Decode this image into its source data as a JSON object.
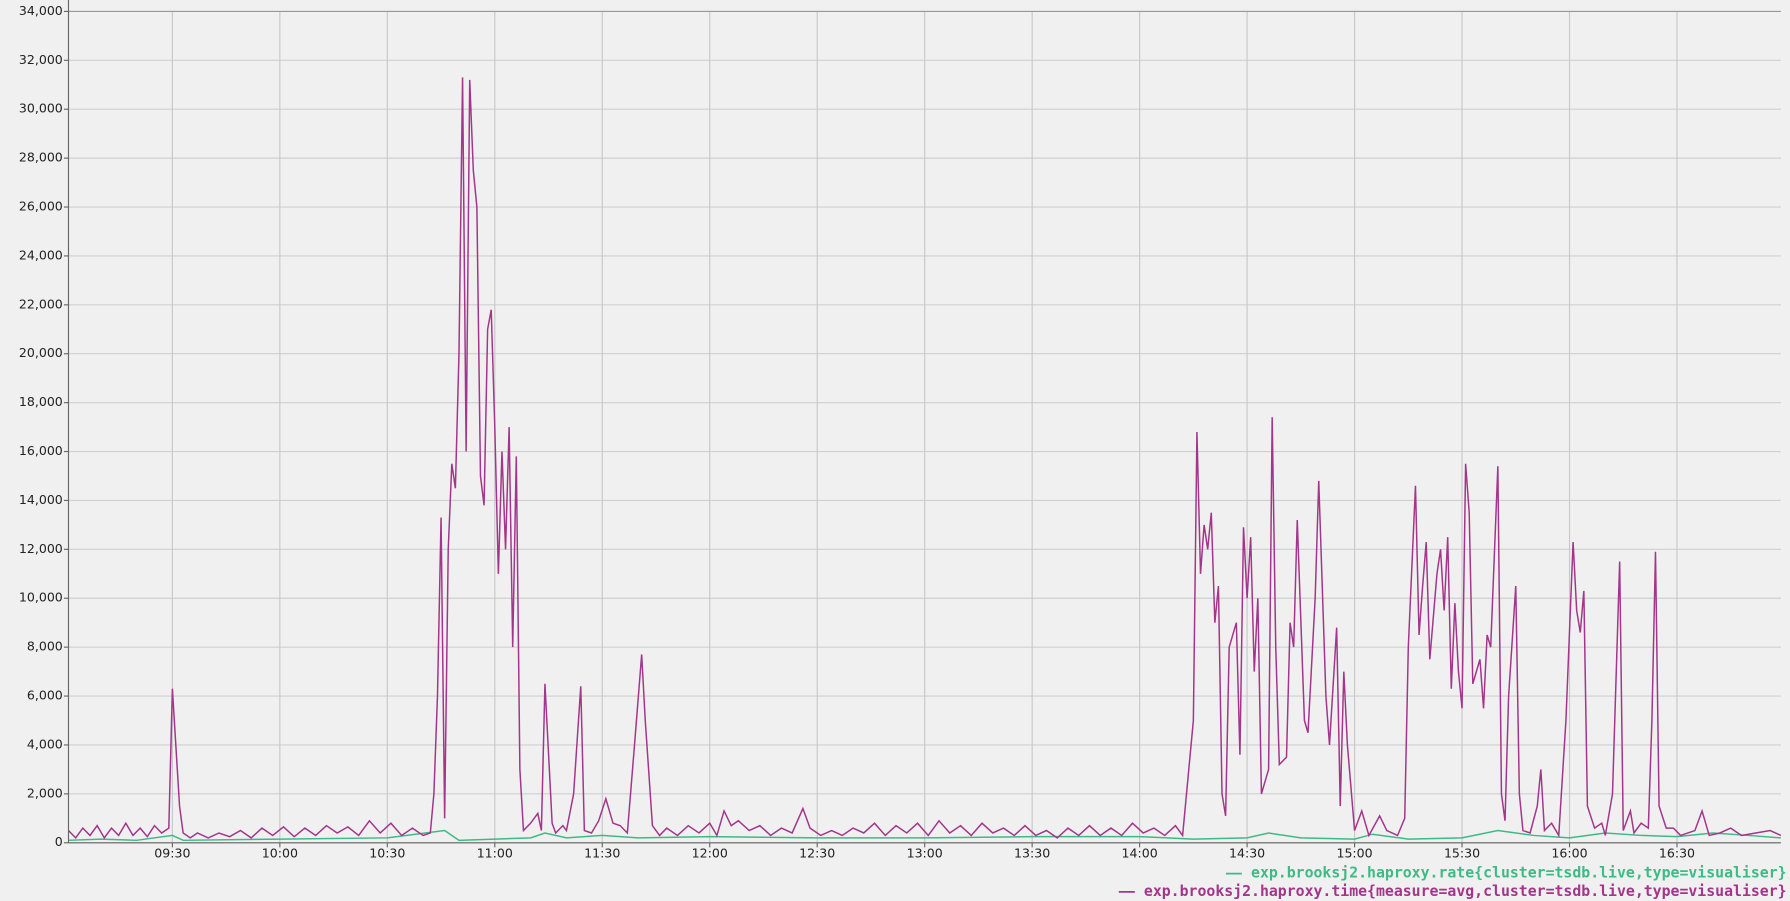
{
  "chart_data": {
    "type": "line",
    "xlim": [
      "09:01",
      "16:59"
    ],
    "xticks": [
      "09:30",
      "10:00",
      "10:30",
      "11:00",
      "11:30",
      "12:00",
      "12:30",
      "13:00",
      "13:30",
      "14:00",
      "14:30",
      "15:00",
      "15:30",
      "16:00",
      "16:30"
    ],
    "ylim": [
      0,
      34000
    ],
    "yticks": [
      0,
      {
        "value": 2000,
        "label": "2,000"
      },
      {
        "value": 4000,
        "label": "4,000"
      },
      {
        "value": 6000,
        "label": "6,000"
      },
      {
        "value": 8000,
        "label": "8,000"
      },
      {
        "value": 10000,
        "label": "10,000"
      },
      {
        "value": 12000,
        "label": "12,000"
      },
      {
        "value": 14000,
        "label": "14,000"
      },
      {
        "value": 16000,
        "label": "16,000"
      },
      {
        "value": 18000,
        "label": "18,000"
      },
      {
        "value": 20000,
        "label": "20,000"
      },
      {
        "value": 22000,
        "label": "22,000"
      },
      {
        "value": 24000,
        "label": "24,000"
      },
      {
        "value": 26000,
        "label": "26,000"
      },
      {
        "value": 28000,
        "label": "28,000"
      },
      {
        "value": 30000,
        "label": "30,000"
      },
      {
        "value": 32000,
        "label": "32,000"
      },
      {
        "value": 34000,
        "label": "34,000"
      }
    ],
    "grid": true,
    "legend": "bottom-right",
    "series": [
      {
        "name": "exp.brooksj2.haproxy.rate{cluster=tsdb.live,type=visualiser}",
        "color": "#3dba86",
        "x": [
          "09:01",
          "09:10",
          "09:20",
          "09:30",
          "09:33",
          "10:00",
          "10:30",
          "10:46",
          "10:50",
          "11:00",
          "11:10",
          "11:14",
          "11:20",
          "11:30",
          "11:40",
          "12:00",
          "12:30",
          "13:00",
          "13:30",
          "14:00",
          "14:15",
          "14:30",
          "14:36",
          "14:45",
          "15:00",
          "15:05",
          "15:15",
          "15:30",
          "15:40",
          "15:50",
          "16:00",
          "16:10",
          "16:20",
          "16:30",
          "16:40",
          "16:50",
          "16:59"
        ],
        "values": [
          100,
          150,
          100,
          300,
          100,
          150,
          200,
          500,
          100,
          150,
          200,
          400,
          200,
          300,
          200,
          250,
          200,
          200,
          250,
          250,
          150,
          200,
          400,
          200,
          150,
          350,
          150,
          200,
          500,
          300,
          200,
          400,
          300,
          250,
          400,
          300,
          200
        ]
      },
      {
        "name": "exp.brooksj2.haproxy.time{measure=avg,cluster=tsdb.live,type=visualiser}",
        "color": "#a3358a",
        "x": [
          "09:01",
          "09:03",
          "09:05",
          "09:07",
          "09:09",
          "09:11",
          "09:13",
          "09:15",
          "09:17",
          "09:19",
          "09:21",
          "09:23",
          "09:25",
          "09:27",
          "09:29",
          "09:30",
          "09:32",
          "09:33",
          "09:35",
          "09:37",
          "09:40",
          "09:43",
          "09:46",
          "09:49",
          "09:52",
          "09:55",
          "09:58",
          "10:01",
          "10:04",
          "10:07",
          "10:10",
          "10:13",
          "10:16",
          "10:19",
          "10:22",
          "10:25",
          "10:28",
          "10:31",
          "10:34",
          "10:37",
          "10:40",
          "10:42",
          "10:43",
          "10:44",
          "10:45",
          "10:46",
          "10:47",
          "10:48",
          "10:49",
          "10:50",
          "10:51",
          "10:52",
          "10:53",
          "10:54",
          "10:55",
          "10:56",
          "10:57",
          "10:58",
          "10:59",
          "11:00",
          "11:01",
          "11:02",
          "11:03",
          "11:04",
          "11:05",
          "11:06",
          "11:07",
          "11:08",
          "11:10",
          "11:12",
          "11:13",
          "11:14",
          "11:16",
          "11:17",
          "11:19",
          "11:20",
          "11:22",
          "11:24",
          "11:25",
          "11:27",
          "11:29",
          "11:31",
          "11:33",
          "11:35",
          "11:37",
          "11:39",
          "11:41",
          "11:42",
          "11:44",
          "11:46",
          "11:48",
          "11:51",
          "11:54",
          "11:57",
          "12:00",
          "12:02",
          "12:04",
          "12:06",
          "12:08",
          "12:11",
          "12:14",
          "12:17",
          "12:20",
          "12:23",
          "12:26",
          "12:28",
          "12:31",
          "12:34",
          "12:37",
          "12:40",
          "12:43",
          "12:46",
          "12:49",
          "12:52",
          "12:55",
          "12:58",
          "13:01",
          "13:04",
          "13:07",
          "13:10",
          "13:13",
          "13:16",
          "13:19",
          "13:22",
          "13:25",
          "13:28",
          "13:31",
          "13:34",
          "13:37",
          "13:40",
          "13:43",
          "13:46",
          "13:49",
          "13:52",
          "13:55",
          "13:58",
          "14:01",
          "14:04",
          "14:07",
          "14:10",
          "14:12",
          "14:15",
          "14:16",
          "14:17",
          "14:18",
          "14:19",
          "14:20",
          "14:21",
          "14:22",
          "14:23",
          "14:24",
          "14:25",
          "14:27",
          "14:28",
          "14:29",
          "14:30",
          "14:31",
          "14:32",
          "14:33",
          "14:34",
          "14:36",
          "14:37",
          "14:38",
          "14:39",
          "14:41",
          "14:42",
          "14:43",
          "14:44",
          "14:46",
          "14:47",
          "14:49",
          "14:50",
          "14:52",
          "14:53",
          "14:55",
          "14:56",
          "14:57",
          "14:58",
          "15:00",
          "15:02",
          "15:04",
          "15:07",
          "15:09",
          "15:12",
          "15:14",
          "15:15",
          "15:17",
          "15:18",
          "15:19",
          "15:20",
          "15:21",
          "15:23",
          "15:24",
          "15:25",
          "15:26",
          "15:27",
          "15:28",
          "15:29",
          "15:30",
          "15:31",
          "15:32",
          "15:33",
          "15:35",
          "15:36",
          "15:37",
          "15:38",
          "15:40",
          "15:41",
          "15:42",
          "15:43",
          "15:45",
          "15:46",
          "15:47",
          "15:49",
          "15:51",
          "15:52",
          "15:53",
          "15:55",
          "15:57",
          "15:59",
          "16:01",
          "16:02",
          "16:03",
          "16:04",
          "16:05",
          "16:07",
          "16:09",
          "16:10",
          "16:12",
          "16:14",
          "16:15",
          "16:17",
          "16:18",
          "16:20",
          "16:22",
          "16:23",
          "16:24",
          "16:25",
          "16:27",
          "16:29",
          "16:31",
          "16:35",
          "16:37",
          "16:39",
          "16:42",
          "16:45",
          "16:48",
          "16:52",
          "16:56",
          "16:59"
        ],
        "values": [
          500,
          200,
          600,
          300,
          700,
          200,
          600,
          300,
          800,
          300,
          600,
          250,
          700,
          400,
          600,
          6300,
          1500,
          400,
          200,
          400,
          200,
          400,
          250,
          500,
          200,
          600,
          300,
          650,
          250,
          600,
          300,
          700,
          400,
          650,
          300,
          900,
          400,
          800,
          300,
          600,
          300,
          400,
          2000,
          6000,
          13300,
          1000,
          12000,
          15500,
          14500,
          20000,
          31300,
          16000,
          31200,
          27500,
          26000,
          15000,
          13800,
          21000,
          21800,
          17000,
          11000,
          16000,
          12000,
          17000,
          8000,
          15800,
          3000,
          500,
          800,
          1200,
          500,
          6500,
          800,
          400,
          700,
          500,
          2000,
          6400,
          500,
          400,
          900,
          1800,
          800,
          700,
          400,
          4000,
          7700,
          5000,
          700,
          300,
          600,
          300,
          700,
          400,
          800,
          300,
          1300,
          700,
          900,
          500,
          700,
          300,
          600,
          400,
          1400,
          600,
          300,
          500,
          300,
          600,
          400,
          800,
          300,
          700,
          400,
          800,
          300,
          900,
          400,
          700,
          300,
          800,
          400,
          600,
          300,
          700,
          300,
          500,
          200,
          600,
          300,
          700,
          300,
          600,
          300,
          800,
          400,
          600,
          300,
          700,
          300,
          5000,
          16800,
          11000,
          13000,
          12000,
          13500,
          9000,
          10500,
          2000,
          1100,
          8000,
          9000,
          3600,
          12900,
          10000,
          12500,
          7000,
          10000,
          2000,
          3000,
          17400,
          8000,
          3200,
          3500,
          9000,
          8000,
          13200,
          5000,
          4500,
          10000,
          14800,
          6000,
          4000,
          8800,
          1500,
          7000,
          4000,
          500,
          1300,
          300,
          1100,
          500,
          300,
          1000,
          8000,
          14600,
          8500,
          10500,
          12300,
          7500,
          11000,
          12000,
          9500,
          12500,
          6300,
          9800,
          7000,
          5500,
          15500,
          13500,
          6500,
          7500,
          5500,
          8500,
          8000,
          15400,
          2000,
          900,
          6000,
          10500,
          2000,
          500,
          400,
          1500,
          3000,
          500,
          800,
          300,
          5000,
          12300,
          9500,
          8600,
          10300,
          1500,
          600,
          800,
          300,
          2000,
          11500,
          500,
          1300,
          400,
          800,
          600,
          5000,
          11900,
          1500,
          600,
          600,
          300,
          500,
          1300,
          300,
          400,
          600,
          300,
          400,
          500,
          300
        ]
      }
    ]
  }
}
